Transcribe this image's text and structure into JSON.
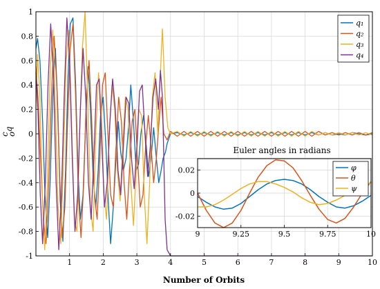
{
  "chart_data": [
    {
      "type": "line",
      "xlabel": "Number of Orbits",
      "ylabel_main": "q",
      "ylabel_sup": "c",
      "ylabel_sub": "o",
      "xlim": [
        0,
        10
      ],
      "ylim": [
        -1,
        1
      ],
      "xticks": [
        1,
        2,
        3,
        4,
        5,
        6,
        7,
        8,
        9,
        10
      ],
      "yticks": [
        -1,
        -0.8,
        -0.6,
        -0.4,
        -0.2,
        0,
        0.2,
        0.4,
        0.6,
        0.8,
        1
      ],
      "ytick_labels": [
        "-1",
        "-0.8",
        "-0.6",
        "-0.4",
        "-0.2",
        "0",
        "0.2",
        "0.4",
        "0.6",
        "0.8",
        "1"
      ],
      "grid": true,
      "legend_position": "top-right",
      "series": [
        {
          "name": "q₁",
          "color": "#0072BD",
          "x": [
            0,
            0.05,
            0.12,
            0.2,
            0.27,
            0.35,
            0.42,
            0.5,
            0.58,
            0.65,
            0.72,
            0.8,
            0.88,
            0.95,
            1.02,
            1.1,
            1.18,
            1.25,
            1.32,
            1.4,
            1.48,
            1.55,
            1.62,
            1.7,
            1.78,
            1.85,
            1.92,
            2.0,
            2.08,
            2.15,
            2.22,
            2.3,
            2.38,
            2.45,
            2.52,
            2.6,
            2.68,
            2.75,
            2.82,
            2.9,
            2.98,
            3.05,
            3.12,
            3.2,
            3.28,
            3.35,
            3.42,
            3.5,
            3.58,
            3.65,
            3.72,
            3.78,
            3.85,
            3.9,
            4.0,
            4.2,
            4.4,
            4.6,
            4.8,
            5.0,
            5.2,
            5.4,
            5.6,
            5.8,
            6.0,
            6.2,
            6.4,
            6.6,
            6.8,
            7.0,
            7.2,
            7.4,
            7.6,
            7.8,
            8.0,
            8.2,
            8.4,
            8.6,
            8.8,
            9.0,
            9.2,
            9.4,
            9.6,
            9.8,
            10.0
          ],
          "y": [
            0.7,
            0.78,
            0.6,
            0.1,
            -0.5,
            -0.85,
            -0.4,
            0.3,
            0.7,
            0.2,
            -0.55,
            -0.88,
            -0.3,
            0.45,
            0.9,
            0.95,
            0.4,
            -0.3,
            -0.7,
            -0.5,
            0.1,
            0.55,
            0.2,
            -0.35,
            -0.6,
            -0.3,
            0.15,
            0.3,
            -0.1,
            -0.55,
            -0.9,
            -0.6,
            -0.2,
            0.1,
            -0.15,
            -0.3,
            -0.2,
            0.05,
            0.4,
            0.1,
            -0.3,
            -0.25,
            0.0,
            0.15,
            -0.1,
            -0.35,
            -0.2,
            0.05,
            -0.2,
            -0.4,
            -0.3,
            -0.2,
            -0.15,
            -0.08,
            0.0,
            0.01,
            -0.01,
            0.01,
            -0.01,
            0.01,
            -0.01,
            0.01,
            -0.01,
            0.01,
            -0.01,
            0.01,
            -0.01,
            0.01,
            -0.01,
            0.01,
            -0.01,
            0.01,
            -0.01,
            0.01,
            -0.01,
            0.01,
            -0.01,
            0.01,
            -0.01,
            0.0,
            -0.01,
            0.01,
            0.0,
            -0.01,
            0.0
          ]
        },
        {
          "name": "q₂",
          "color": "#D95319",
          "x": [
            0,
            0.06,
            0.14,
            0.22,
            0.3,
            0.38,
            0.46,
            0.54,
            0.62,
            0.7,
            0.78,
            0.86,
            0.94,
            1.02,
            1.1,
            1.18,
            1.26,
            1.34,
            1.42,
            1.5,
            1.58,
            1.66,
            1.74,
            1.82,
            1.9,
            1.98,
            2.06,
            2.14,
            2.22,
            2.3,
            2.38,
            2.46,
            2.54,
            2.62,
            2.7,
            2.78,
            2.86,
            2.94,
            3.02,
            3.1,
            3.18,
            3.26,
            3.34,
            3.42,
            3.5,
            3.58,
            3.66,
            3.72,
            3.8,
            3.9,
            4.0,
            4.2,
            4.4,
            4.6,
            4.8,
            5.0,
            5.2,
            5.4,
            5.6,
            5.8,
            6.0,
            6.2,
            6.4,
            6.6,
            6.8,
            7.0,
            7.2,
            7.4,
            7.6,
            7.8,
            8.0,
            8.2,
            8.4,
            8.6,
            8.8,
            9.0,
            9.2,
            9.4,
            9.6,
            9.8,
            10.0
          ],
          "y": [
            0.55,
            0.3,
            -0.2,
            -0.7,
            -0.9,
            -0.4,
            0.3,
            0.8,
            0.4,
            -0.3,
            -0.85,
            -0.6,
            0.1,
            0.7,
            0.9,
            0.3,
            -0.5,
            -0.85,
            -0.4,
            0.3,
            0.6,
            0.1,
            -0.5,
            -0.7,
            -0.2,
            0.4,
            0.5,
            0.0,
            -0.5,
            -0.6,
            -0.1,
            0.3,
            0.1,
            -0.4,
            -0.7,
            -0.3,
            0.1,
            0.2,
            -0.2,
            -0.6,
            -0.5,
            -0.1,
            0.15,
            -0.1,
            -0.4,
            -0.2,
            0.1,
            0.3,
            0.0,
            -0.05,
            0.02,
            -0.02,
            0.02,
            -0.02,
            0.02,
            -0.02,
            0.02,
            -0.02,
            0.02,
            -0.02,
            0.02,
            -0.02,
            0.02,
            -0.02,
            0.02,
            -0.02,
            0.02,
            -0.02,
            0.02,
            -0.02,
            0.02,
            -0.02,
            0.02,
            -0.01,
            0.01,
            -0.01,
            0.01,
            -0.01,
            0.01,
            -0.01,
            0.01
          ]
        },
        {
          "name": "q₃",
          "color": "#EDB120",
          "x": [
            0,
            0.05,
            0.12,
            0.19,
            0.26,
            0.34,
            0.42,
            0.5,
            0.58,
            0.66,
            0.74,
            0.82,
            0.9,
            0.98,
            1.06,
            1.14,
            1.22,
            1.3,
            1.38,
            1.46,
            1.54,
            1.62,
            1.7,
            1.78,
            1.86,
            1.94,
            2.02,
            2.1,
            2.18,
            2.26,
            2.34,
            2.42,
            2.5,
            2.58,
            2.66,
            2.74,
            2.82,
            2.9,
            2.98,
            3.06,
            3.14,
            3.22,
            3.3,
            3.38,
            3.46,
            3.54,
            3.62,
            3.7,
            3.76,
            3.84,
            3.92,
            4.0,
            4.2,
            4.4,
            4.6,
            4.8,
            5.0,
            5.2,
            5.4,
            5.6,
            5.8,
            6.0,
            6.2,
            6.4,
            6.6,
            6.8,
            7.0,
            7.2,
            7.4,
            7.6,
            7.8,
            8.0,
            8.2,
            8.4,
            8.6,
            8.8,
            9.0,
            9.2,
            9.4,
            9.6,
            9.8,
            10.0
          ],
          "y": [
            0.2,
            0.65,
            0.3,
            -0.5,
            -0.95,
            -0.4,
            0.5,
            0.85,
            0.2,
            -0.6,
            -0.9,
            -0.2,
            0.6,
            0.85,
            0.1,
            -0.7,
            -0.8,
            0.0,
            0.7,
            1.0,
            0.3,
            -0.6,
            -0.8,
            0.0,
            0.5,
            0.2,
            -0.5,
            -0.7,
            0.0,
            0.4,
            0.2,
            -0.3,
            -0.55,
            -0.1,
            0.3,
            0.2,
            -0.4,
            -0.75,
            -0.3,
            0.2,
            0.15,
            -0.5,
            -0.9,
            -0.4,
            0.3,
            0.5,
            0.0,
            0.5,
            0.86,
            0.3,
            0.05,
            0.0,
            0.02,
            -0.02,
            0.02,
            -0.02,
            0.02,
            -0.02,
            0.02,
            -0.02,
            0.02,
            -0.02,
            0.02,
            -0.02,
            0.02,
            -0.02,
            0.02,
            -0.02,
            0.02,
            -0.02,
            0.02,
            -0.02,
            0.02,
            -0.01,
            0.01,
            -0.01,
            0.01,
            -0.01,
            0.01,
            -0.01,
            0.01,
            -0.01
          ]
        },
        {
          "name": "q₄",
          "color": "#7E2F8E",
          "x": [
            0,
            0.06,
            0.13,
            0.2,
            0.28,
            0.36,
            0.44,
            0.52,
            0.6,
            0.68,
            0.76,
            0.84,
            0.92,
            1.0,
            1.08,
            1.16,
            1.24,
            1.32,
            1.4,
            1.48,
            1.56,
            1.64,
            1.72,
            1.8,
            1.88,
            1.96,
            2.04,
            2.12,
            2.2,
            2.28,
            2.36,
            2.44,
            2.52,
            2.6,
            2.68,
            2.76,
            2.84,
            2.92,
            3.0,
            3.08,
            3.16,
            3.24,
            3.32,
            3.4,
            3.48,
            3.56,
            3.64,
            3.7,
            3.76,
            3.8,
            3.84,
            3.9,
            4.0,
            5.0,
            6.0,
            7.0,
            8.0,
            9.0,
            10.0
          ],
          "y": [
            0.5,
            0.2,
            -0.5,
            -0.9,
            -0.4,
            0.4,
            0.9,
            0.5,
            -0.4,
            -0.95,
            -0.5,
            0.3,
            0.95,
            0.6,
            -0.2,
            -0.8,
            -0.5,
            0.2,
            0.7,
            0.3,
            -0.4,
            -0.7,
            -0.2,
            0.4,
            0.45,
            -0.1,
            -0.6,
            -0.4,
            0.1,
            0.45,
            0.2,
            -0.3,
            -0.5,
            -0.1,
            0.3,
            0.25,
            -0.2,
            -0.45,
            -0.1,
            0.35,
            0.4,
            0.0,
            -0.35,
            -0.1,
            0.3,
            0.45,
            0.2,
            0.52,
            0.3,
            -0.2,
            -0.7,
            -0.95,
            -1.0,
            -1.0,
            -1.0,
            -1.0,
            -1.0,
            -1.0,
            -1.0
          ]
        }
      ]
    },
    {
      "type": "line",
      "title": "Euler angles in radians",
      "xlim": [
        9,
        10
      ],
      "ylim": [
        -0.03,
        0.03
      ],
      "xticks": [
        9,
        9.25,
        9.5,
        9.75,
        10
      ],
      "xtick_labels": [
        "9",
        "9.25",
        "9.5",
        "9.75",
        "10"
      ],
      "yticks": [
        -0.02,
        0,
        0.02
      ],
      "ytick_labels": [
        "-0.02",
        "0",
        "0.02"
      ],
      "grid": true,
      "legend_position": "top-right",
      "series": [
        {
          "name": "φ",
          "color": "#0072BD",
          "x": [
            9.0,
            9.05,
            9.1,
            9.15,
            9.2,
            9.25,
            9.3,
            9.35,
            9.4,
            9.45,
            9.5,
            9.55,
            9.6,
            9.65,
            9.7,
            9.75,
            9.8,
            9.85,
            9.9,
            9.95,
            10.0
          ],
          "y": [
            -0.003,
            -0.008,
            -0.012,
            -0.014,
            -0.013,
            -0.009,
            -0.003,
            0.003,
            0.008,
            0.011,
            0.012,
            0.011,
            0.008,
            0.003,
            -0.003,
            -0.008,
            -0.012,
            -0.013,
            -0.011,
            -0.007,
            -0.002
          ]
        },
        {
          "name": "θ",
          "color": "#D95319",
          "x": [
            9.0,
            9.05,
            9.1,
            9.15,
            9.2,
            9.25,
            9.3,
            9.35,
            9.4,
            9.45,
            9.5,
            9.55,
            9.6,
            9.65,
            9.7,
            9.75,
            9.8,
            9.85,
            9.9,
            9.95,
            10.0
          ],
          "y": [
            0.0,
            -0.015,
            -0.026,
            -0.03,
            -0.026,
            -0.015,
            0.0,
            0.014,
            0.024,
            0.029,
            0.028,
            0.022,
            0.011,
            -0.002,
            -0.014,
            -0.023,
            -0.026,
            -0.022,
            -0.012,
            0.0,
            0.01
          ]
        },
        {
          "name": "ψ",
          "color": "#EDB120",
          "x": [
            9.0,
            9.05,
            9.1,
            9.15,
            9.2,
            9.25,
            9.3,
            9.35,
            9.4,
            9.45,
            9.5,
            9.55,
            9.6,
            9.65,
            9.7,
            9.75,
            9.8,
            9.85,
            9.9,
            9.95,
            10.0
          ],
          "y": [
            -0.012,
            -0.012,
            -0.01,
            -0.006,
            -0.001,
            0.004,
            0.008,
            0.01,
            0.01,
            0.008,
            0.005,
            0.001,
            -0.004,
            -0.008,
            -0.01,
            -0.009,
            -0.006,
            -0.002,
            0.002,
            0.006,
            0.009
          ]
        }
      ]
    }
  ]
}
